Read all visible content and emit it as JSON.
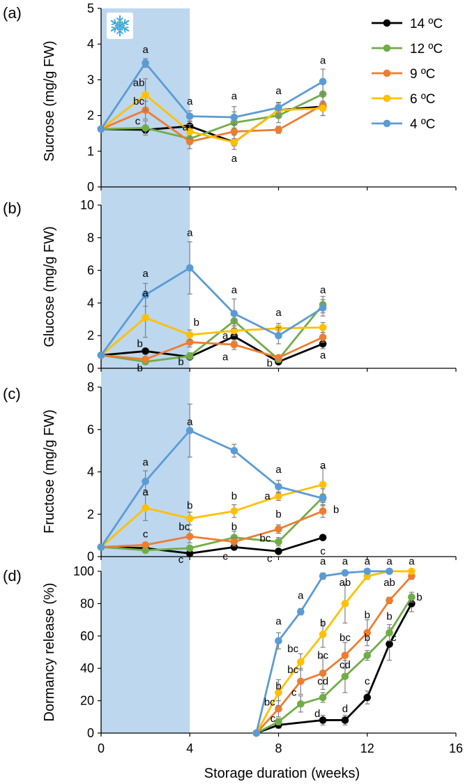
{
  "colors": {
    "14": "#000000",
    "12": "#70ad47",
    "9": "#ed7d31",
    "6": "#ffc000",
    "4": "#5b9bd5",
    "shade": "#bdd7ee",
    "snowflake": "#3fa9d6",
    "errorbar": "#7f7f7f"
  },
  "shade_range": [
    0,
    4
  ],
  "snowflake_icon": "snowflake-icon",
  "x_axis": {
    "label": "Storage duration (weeks)",
    "ticks": [
      "0",
      "4",
      "8",
      "12",
      "16"
    ],
    "range": [
      0,
      16
    ]
  },
  "legend": {
    "placement": "top-right",
    "entries": [
      {
        "key": "14",
        "label": "14 ºC"
      },
      {
        "key": "12",
        "label": "12 ºC"
      },
      {
        "key": "9",
        "label": "9 ºC"
      },
      {
        "key": "6",
        "label": "6 ºC"
      },
      {
        "key": "4",
        "label": "4 ºC"
      }
    ]
  },
  "chart_data": [
    {
      "type": "line",
      "panel": "(a)",
      "ylabel": "Sucrose (mg/g FW)",
      "ylim": [
        0,
        5
      ],
      "yticks": [
        "0",
        "1",
        "2",
        "3",
        "4",
        "5"
      ],
      "series": [
        {
          "key": "14",
          "name": "14 ºC",
          "x": [
            0,
            2,
            4,
            6,
            8,
            10
          ],
          "y": [
            1.62,
            1.6,
            1.7,
            1.25,
            2.15,
            2.25
          ],
          "err": [
            0,
            0.1,
            0.15,
            0.1,
            0.15,
            0.1
          ]
        },
        {
          "key": "12",
          "name": "12 ºC",
          "x": [
            0,
            2,
            4,
            6,
            8,
            10
          ],
          "y": [
            1.62,
            1.65,
            1.35,
            1.8,
            2.0,
            2.6
          ],
          "err": [
            0,
            0.2,
            0.15,
            0.3,
            0.2,
            0.3
          ]
        },
        {
          "key": "9",
          "name": "9 ºC",
          "x": [
            0,
            2,
            4,
            6,
            8,
            10
          ],
          "y": [
            1.62,
            2.15,
            1.27,
            1.55,
            1.6,
            2.3
          ],
          "err": [
            0,
            0.25,
            0.2,
            0.2,
            0.1,
            0.3
          ]
        },
        {
          "key": "6",
          "name": "6 ºC",
          "x": [
            0,
            2,
            4,
            6,
            8,
            10
          ],
          "y": [
            1.62,
            2.58,
            1.55,
            1.25,
            2.15,
            2.2
          ],
          "err": [
            0,
            0.45,
            0.2,
            0.2,
            0.2,
            0.2
          ]
        },
        {
          "key": "4",
          "name": "4 ºC",
          "x": [
            0,
            2,
            4,
            6,
            8,
            10
          ],
          "y": [
            1.62,
            3.47,
            1.98,
            1.95,
            2.22,
            2.95
          ],
          "err": [
            0,
            0.12,
            0.15,
            0.3,
            0.15,
            0.35
          ]
        }
      ],
      "annotations": [
        {
          "x": 2,
          "y": 3.75,
          "text": "a"
        },
        {
          "x": 1.7,
          "y": 2.82,
          "text": "ab"
        },
        {
          "x": 1.7,
          "y": 2.3,
          "text": "bc"
        },
        {
          "x": 1.65,
          "y": 1.75,
          "text": "c"
        },
        {
          "x": 4,
          "y": 2.3,
          "text": "a"
        },
        {
          "x": 3.8,
          "y": 1.58,
          "text": "a"
        },
        {
          "x": 6,
          "y": 2.45,
          "text": "a"
        },
        {
          "x": 6,
          "y": 0.7,
          "text": "a"
        },
        {
          "x": 8,
          "y": 2.6,
          "text": "a"
        },
        {
          "x": 10,
          "y": 3.45,
          "text": "a"
        }
      ]
    },
    {
      "type": "line",
      "panel": "(b)",
      "ylabel": "Glucose (mg/g FW)",
      "ylim": [
        0,
        10
      ],
      "yticks": [
        "0",
        "2",
        "4",
        "6",
        "8",
        "10"
      ],
      "series": [
        {
          "key": "14",
          "name": "14 ºC",
          "x": [
            0,
            2,
            4,
            6,
            8,
            10
          ],
          "y": [
            0.8,
            1.05,
            0.7,
            1.95,
            0.4,
            1.5
          ],
          "err": [
            0,
            0.15,
            0.1,
            0.3,
            0.1,
            0.3
          ]
        },
        {
          "key": "12",
          "name": "12 ºC",
          "x": [
            0,
            2,
            4,
            6,
            8,
            10
          ],
          "y": [
            0.8,
            0.4,
            0.75,
            2.9,
            0.55,
            3.9
          ],
          "err": [
            0,
            0.15,
            0.2,
            0.3,
            0.2,
            0.5
          ]
        },
        {
          "key": "9",
          "name": "9 ºC",
          "x": [
            0,
            2,
            4,
            6,
            8,
            10
          ],
          "y": [
            0.8,
            0.55,
            1.6,
            1.45,
            0.65,
            1.9
          ],
          "err": [
            0,
            0.15,
            0.3,
            0.3,
            0.15,
            0.3
          ]
        },
        {
          "key": "6",
          "name": "6 ºC",
          "x": [
            0,
            2,
            4,
            6,
            8,
            10
          ],
          "y": [
            0.8,
            3.1,
            2.05,
            2.3,
            2.45,
            2.5
          ],
          "err": [
            0,
            1.2,
            0.3,
            0.3,
            0.3,
            0.3
          ]
        },
        {
          "key": "4",
          "name": "4 ºC",
          "x": [
            0,
            2,
            4,
            6,
            8,
            10
          ],
          "y": [
            0.8,
            4.5,
            6.15,
            3.35,
            2.0,
            3.7
          ],
          "err": [
            0,
            0.7,
            1.6,
            0.9,
            0.5,
            0.5
          ]
        }
      ],
      "annotations": [
        {
          "x": 2,
          "y": 5.6,
          "text": "a"
        },
        {
          "x": 2,
          "y": 4.4,
          "text": "a"
        },
        {
          "x": 1.75,
          "y": 1.3,
          "text": "b"
        },
        {
          "x": 1.75,
          "y": -0.2,
          "text": "b"
        },
        {
          "x": 4,
          "y": 8.1,
          "text": "a"
        },
        {
          "x": 4.3,
          "y": 2.6,
          "text": "b"
        },
        {
          "x": 3.6,
          "y": 0.2,
          "text": "b"
        },
        {
          "x": 6,
          "y": 4.6,
          "text": "a"
        },
        {
          "x": 5.6,
          "y": 1.8,
          "text": "a"
        },
        {
          "x": 5.6,
          "y": 0.5,
          "text": "a"
        },
        {
          "x": 8,
          "y": 3.2,
          "text": "a"
        },
        {
          "x": 7.6,
          "y": 0.1,
          "text": "b"
        },
        {
          "x": 10,
          "y": 4.6,
          "text": "a"
        },
        {
          "x": 10,
          "y": 0.6,
          "text": "a"
        }
      ]
    },
    {
      "type": "line",
      "panel": "(c)",
      "ylabel": "Fructose (mg/g FW)",
      "ylim": [
        0,
        8
      ],
      "yticks": [
        "0",
        "2",
        "4",
        "6",
        "8"
      ],
      "series": [
        {
          "key": "14",
          "name": "14 ºC",
          "x": [
            0,
            2,
            4,
            6,
            8,
            10
          ],
          "y": [
            0.45,
            0.4,
            0.15,
            0.45,
            0.25,
            0.9
          ],
          "err": [
            0,
            0.1,
            0.1,
            0.1,
            0.1,
            0.1
          ]
        },
        {
          "key": "12",
          "name": "12 ºC",
          "x": [
            0,
            2,
            4,
            6,
            8,
            10
          ],
          "y": [
            0.45,
            0.3,
            0.4,
            0.9,
            0.7,
            2.8
          ],
          "err": [
            0,
            0.1,
            0.1,
            0.3,
            0.2,
            0.4
          ]
        },
        {
          "key": "9",
          "name": "9 ºC",
          "x": [
            0,
            2,
            4,
            6,
            8,
            10
          ],
          "y": [
            0.45,
            0.55,
            0.95,
            0.7,
            1.3,
            2.15
          ],
          "err": [
            0,
            0.1,
            0.3,
            0.2,
            0.2,
            0.3
          ]
        },
        {
          "key": "6",
          "name": "6 ºC",
          "x": [
            0,
            2,
            4,
            6,
            8,
            10
          ],
          "y": [
            0.45,
            2.3,
            1.8,
            2.15,
            2.85,
            3.4
          ],
          "err": [
            0,
            0.6,
            0.3,
            0.3,
            0.2,
            0.8
          ]
        },
        {
          "key": "4",
          "name": "4 ºC",
          "x": [
            0,
            2,
            4,
            6,
            8,
            10
          ],
          "y": [
            0.45,
            3.55,
            5.95,
            5.0,
            3.3,
            2.75
          ],
          "err": [
            0,
            0.5,
            1.25,
            0.3,
            0.3,
            0.2
          ]
        }
      ],
      "annotations": [
        {
          "x": 2,
          "y": 4.3,
          "text": "a"
        },
        {
          "x": 2,
          "y": 2.9,
          "text": "a"
        },
        {
          "x": 2,
          "y": 0.9,
          "text": "c"
        },
        {
          "x": 4,
          "y": 6.2,
          "text": "a"
        },
        {
          "x": 4,
          "y": 2.25,
          "text": "b"
        },
        {
          "x": 3.75,
          "y": 1.25,
          "text": "bc"
        },
        {
          "x": 3.6,
          "y": -0.3,
          "text": "c"
        },
        {
          "x": 6,
          "y": 2.7,
          "text": "b"
        },
        {
          "x": 6,
          "y": 1.25,
          "text": "b"
        },
        {
          "x": 5.6,
          "y": -0.15,
          "text": "c"
        },
        {
          "x": 8,
          "y": 3.95,
          "text": "a"
        },
        {
          "x": 7.5,
          "y": 2.7,
          "text": "a"
        },
        {
          "x": 8,
          "y": 1.85,
          "text": "b"
        },
        {
          "x": 7.4,
          "y": 0.7,
          "text": "bc"
        },
        {
          "x": 7.6,
          "y": -0.25,
          "text": "c"
        },
        {
          "x": 10,
          "y": 4.15,
          "text": "a"
        },
        {
          "x": 10.6,
          "y": 2.05,
          "text": "b"
        },
        {
          "x": 10,
          "y": 0.1,
          "text": "c"
        }
      ]
    },
    {
      "type": "line",
      "panel": "(d)",
      "ylabel": "Dormancy release (%)",
      "ylim": [
        0,
        100
      ],
      "yticks": [
        "0",
        "20",
        "40",
        "60",
        "80",
        "100"
      ],
      "series": [
        {
          "key": "14",
          "name": "14 ºC",
          "x": [
            7,
            8,
            10,
            11,
            12,
            13,
            14
          ],
          "y": [
            0,
            5,
            8,
            8,
            22,
            55,
            80
          ],
          "err": [
            0,
            2,
            3,
            3,
            4,
            10,
            5
          ]
        },
        {
          "key": "12",
          "name": "12 ºC",
          "x": [
            7,
            8,
            9,
            10,
            11,
            12,
            13,
            14
          ],
          "y": [
            0,
            7,
            18,
            22,
            35,
            48,
            62,
            84
          ],
          "err": [
            0,
            2,
            5,
            3,
            10,
            3,
            5,
            3
          ]
        },
        {
          "key": "9",
          "name": "9 ºC",
          "x": [
            7,
            8,
            9,
            10,
            11,
            12,
            13,
            14
          ],
          "y": [
            0,
            15,
            32,
            37,
            48,
            62,
            82,
            97
          ],
          "err": [
            0,
            5,
            8,
            10,
            8,
            8,
            2,
            2
          ]
        },
        {
          "key": "6",
          "name": "6 ºC",
          "x": [
            7,
            8,
            9,
            10,
            11,
            12,
            13,
            14
          ],
          "y": [
            0,
            25,
            44,
            61,
            80,
            97,
            100,
            100
          ],
          "err": [
            0,
            8,
            5,
            8,
            12,
            2,
            0,
            0
          ]
        },
        {
          "key": "4",
          "name": "4 ºC",
          "x": [
            7,
            8,
            9,
            10,
            11,
            12,
            13
          ],
          "y": [
            0,
            57,
            75,
            97,
            99,
            100,
            100
          ],
          "err": [
            0,
            5,
            2,
            2,
            1,
            0,
            0
          ]
        }
      ],
      "annotations": [
        {
          "x": 8,
          "y": 67,
          "text": "a"
        },
        {
          "x": 8,
          "y": 27,
          "text": "b"
        },
        {
          "x": 7.6,
          "y": 17,
          "text": "bc"
        },
        {
          "x": 7.75,
          "y": 7,
          "text": "c"
        },
        {
          "x": 9,
          "y": 83,
          "text": "a"
        },
        {
          "x": 8.65,
          "y": 50,
          "text": "bc"
        },
        {
          "x": 8.65,
          "y": 37,
          "text": "bc"
        },
        {
          "x": 8.7,
          "y": 23,
          "text": "c"
        },
        {
          "x": 10,
          "y": 104,
          "text": "a"
        },
        {
          "x": 10,
          "y": 66,
          "text": "b"
        },
        {
          "x": 10,
          "y": 46,
          "text": "bc"
        },
        {
          "x": 10,
          "y": 30,
          "text": "cd"
        },
        {
          "x": 9.75,
          "y": 10,
          "text": "d"
        },
        {
          "x": 11,
          "y": 104,
          "text": "a"
        },
        {
          "x": 11,
          "y": 91,
          "text": "ab"
        },
        {
          "x": 11,
          "y": 57,
          "text": "bc"
        },
        {
          "x": 11,
          "y": 40,
          "text": "cd"
        },
        {
          "x": 11,
          "y": 13,
          "text": "d"
        },
        {
          "x": 12,
          "y": 104,
          "text": "a"
        },
        {
          "x": 12,
          "y": 71,
          "text": "b"
        },
        {
          "x": 12,
          "y": 57,
          "text": "b"
        },
        {
          "x": 12,
          "y": 30,
          "text": "c"
        },
        {
          "x": 13,
          "y": 104,
          "text": "a"
        },
        {
          "x": 13,
          "y": 91,
          "text": "ab"
        },
        {
          "x": 13,
          "y": 70,
          "text": "b"
        },
        {
          "x": 13.2,
          "y": 57,
          "text": "c"
        },
        {
          "x": 14,
          "y": 104,
          "text": "a"
        },
        {
          "x": 14.35,
          "y": 82,
          "text": "b"
        }
      ]
    }
  ]
}
